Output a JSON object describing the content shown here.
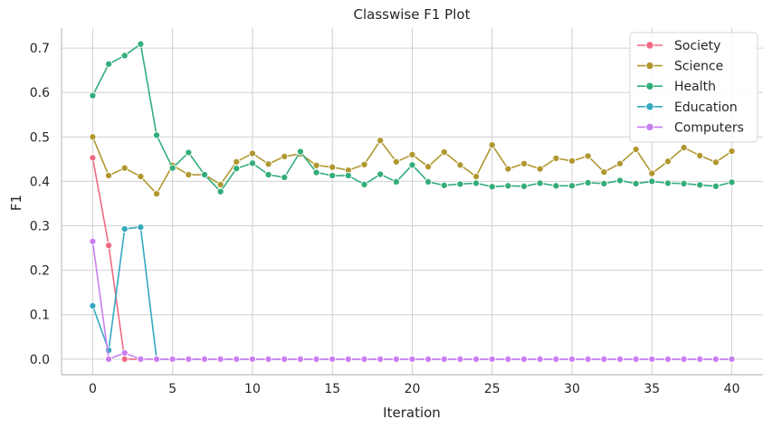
{
  "chart_data": {
    "type": "line",
    "title": "Classwise F1 Plot",
    "xlabel": "Iteration",
    "ylabel": "F1",
    "xlim": [
      -1.95,
      41.95
    ],
    "ylim": [
      -0.035,
      0.745
    ],
    "xticks": [
      0,
      5,
      10,
      15,
      20,
      25,
      30,
      35,
      40
    ],
    "yticks": [
      0.0,
      0.1,
      0.2,
      0.3,
      0.4,
      0.5,
      0.6,
      0.7
    ],
    "grid": true,
    "legend_position": "top-right",
    "x": [
      0,
      1,
      2,
      3,
      4,
      5,
      6,
      7,
      8,
      9,
      10,
      11,
      12,
      13,
      14,
      15,
      16,
      17,
      18,
      19,
      20,
      21,
      22,
      23,
      24,
      25,
      26,
      27,
      28,
      29,
      30,
      31,
      32,
      33,
      34,
      35,
      36,
      37,
      38,
      39,
      40
    ],
    "series": [
      {
        "name": "Society",
        "color": "#ef6a84",
        "values": [
          0.453,
          0.256,
          0.0,
          0,
          0,
          0,
          0,
          0,
          0,
          0,
          0,
          0,
          0,
          0,
          0,
          0,
          0,
          0,
          0,
          0,
          0,
          0,
          0,
          0,
          0,
          0,
          0,
          0,
          0,
          0,
          0,
          0,
          0,
          0,
          0,
          0,
          0,
          0,
          0,
          0,
          0
        ]
      },
      {
        "name": "Science",
        "color": "#b0972f",
        "values": [
          0.5,
          0.413,
          0.43,
          0.411,
          0.372,
          0.436,
          0.415,
          0.415,
          0.393,
          0.444,
          0.463,
          0.439,
          0.456,
          0.462,
          0.436,
          0.432,
          0.425,
          0.438,
          0.492,
          0.444,
          0.46,
          0.433,
          0.466,
          0.437,
          0.411,
          0.482,
          0.428,
          0.44,
          0.428,
          0.452,
          0.446,
          0.457,
          0.421,
          0.44,
          0.472,
          0.418,
          0.445,
          0.476,
          0.458,
          0.443,
          0.468
        ]
      },
      {
        "name": "Health",
        "color": "#33ad7a",
        "values": [
          0.593,
          0.664,
          0.683,
          0.709,
          0.504,
          0.43,
          0.465,
          0.415,
          0.377,
          0.429,
          0.441,
          0.415,
          0.409,
          0.467,
          0.42,
          0.413,
          0.413,
          0.393,
          0.416,
          0.399,
          0.437,
          0.399,
          0.391,
          0.394,
          0.396,
          0.388,
          0.39,
          0.389,
          0.396,
          0.39,
          0.39,
          0.397,
          0.395,
          0.402,
          0.395,
          0.4,
          0.396,
          0.395,
          0.392,
          0.389,
          0.398
        ]
      },
      {
        "name": "Education",
        "color": "#35a8be",
        "values": [
          0.12,
          0.02,
          0.293,
          0.297,
          0,
          0,
          0,
          0,
          0,
          0,
          0,
          0,
          0,
          0,
          0,
          0,
          0,
          0,
          0,
          0,
          0,
          0,
          0,
          0,
          0,
          0,
          0,
          0,
          0,
          0,
          0,
          0,
          0,
          0,
          0,
          0,
          0,
          0,
          0,
          0,
          0
        ]
      },
      {
        "name": "Computers",
        "color": "#c97ff0",
        "values": [
          0.265,
          0.0,
          0.014,
          0.0,
          0,
          0,
          0,
          0,
          0,
          0,
          0,
          0,
          0,
          0,
          0,
          0,
          0,
          0,
          0,
          0,
          0,
          0,
          0,
          0,
          0,
          0,
          0,
          0,
          0,
          0,
          0,
          0,
          0,
          0,
          0,
          0,
          0,
          0,
          0,
          0,
          0
        ]
      }
    ]
  }
}
